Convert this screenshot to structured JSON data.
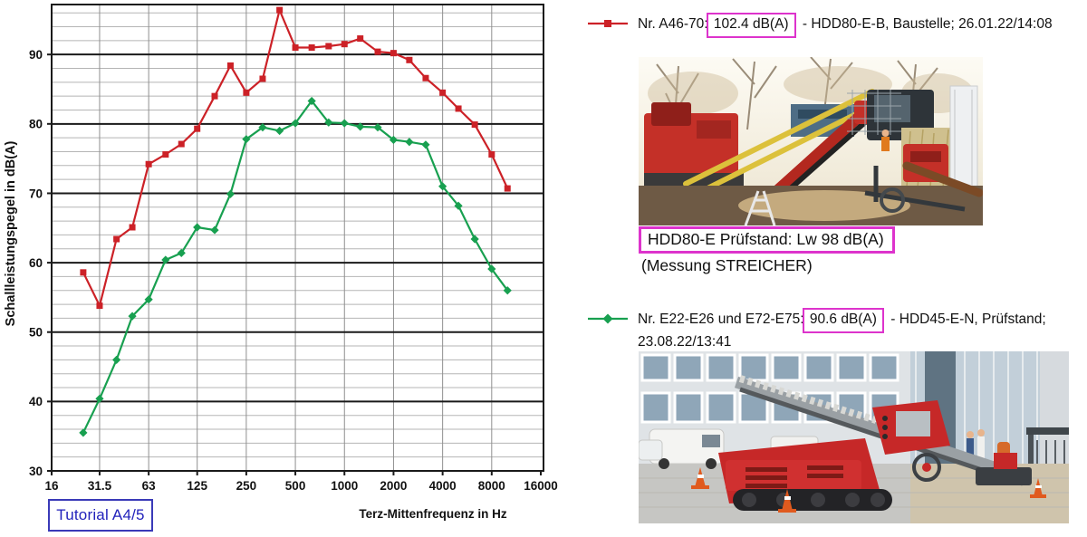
{
  "chart_data": {
    "type": "line",
    "title": "",
    "xlabel": "Terz-Mittenfrequenz in Hz",
    "ylabel": "Schallleistungspegel in dB(A)",
    "x_scale": "log",
    "x_tick_values": [
      16,
      31.5,
      63,
      125,
      250,
      500,
      1000,
      2000,
      4000,
      8000,
      16000
    ],
    "x_tick_labels": [
      "16",
      "31.5",
      "63",
      "125",
      "250",
      "500",
      "1000",
      "2000",
      "4000",
      "8000",
      "16000"
    ],
    "y_ticks": [
      30,
      40,
      50,
      60,
      70,
      80,
      90
    ],
    "ylim": [
      30,
      97.2
    ],
    "minor_y_step": 2,
    "grid": true,
    "x": [
      25,
      31.5,
      40,
      50,
      63,
      80,
      100,
      125,
      160,
      200,
      250,
      315,
      400,
      500,
      630,
      800,
      1000,
      1250,
      1600,
      2000,
      2500,
      3150,
      4000,
      5000,
      6300,
      8000,
      10000
    ],
    "series": [
      {
        "name": "Nr. A46-70: 102.4 dB(A) - HDD80-E-B, Baustelle; 26.01.22/14:08",
        "color": "#cc2127",
        "marker": "square",
        "values": [
          58.6,
          53.8,
          63.4,
          65.1,
          74.2,
          75.6,
          77.1,
          79.3,
          84.0,
          88.4,
          84.5,
          86.5,
          96.4,
          91.0,
          91.0,
          91.2,
          91.5,
          92.3,
          90.4,
          90.2,
          89.2,
          86.6,
          84.5,
          82.2,
          79.9,
          75.6,
          70.7
        ]
      },
      {
        "name": "Nr. E22-E26 und E72-E75: 90.6 dB(A) - HDD45-E-N, Prüfstand; 23.08.22/13:41",
        "color": "#18a050",
        "marker": "diamond",
        "values": [
          35.5,
          40.4,
          46.0,
          52.3,
          54.7,
          60.4,
          61.4,
          65.1,
          64.7,
          69.9,
          77.8,
          79.5,
          79.0,
          80.1,
          83.3,
          80.2,
          80.1,
          79.6,
          79.5,
          77.7,
          77.4,
          77.0,
          71.0,
          68.2,
          63.4,
          59.1,
          56.0
        ]
      }
    ]
  },
  "tutorial_badge": {
    "label": "Tutorial A4/5"
  },
  "legend1": {
    "pre": "Nr. A46-70:",
    "boxed": "102.4 dB(A)",
    "post": "- HDD80-E-B, Baustelle; 26.01.22/14:08"
  },
  "legend2": {
    "pre": "Nr. E22-E26 und E72-E75:",
    "boxed": "90.6 dB(A)",
    "post": "- HDD45-E-N, Prüfstand;",
    "line2": "23.08.22/13:41"
  },
  "photo1_caption": {
    "boxed": "HDD80-E Prüfstand: Lw 98 dB(A)",
    "sub": "(Messung STREICHER)"
  },
  "colors": {
    "series_red": "#cc2127",
    "series_green": "#18a050",
    "accent_magenta": "#dd33cc",
    "badge_blue": "#2222bb",
    "grid_minor": "#b5b5b5",
    "grid_major": "#1a1a1a",
    "grid_octave": "#8f8f8f"
  }
}
